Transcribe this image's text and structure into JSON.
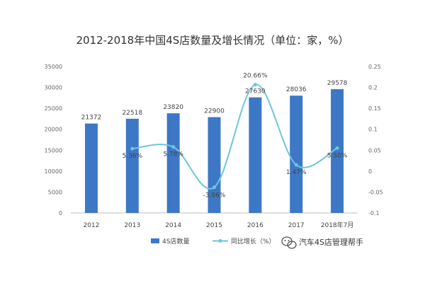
{
  "chart_data": {
    "type": "bar",
    "title": "2012-2018年中国4S店数量及增长情况（单位：家，%）",
    "categories": [
      "2012",
      "2013",
      "2014",
      "2015",
      "2016",
      "2017",
      "2018年7月"
    ],
    "series": [
      {
        "name": "4S店数量",
        "type": "bar",
        "axis": "left",
        "values": [
          21372,
          22518,
          23820,
          22900,
          27630,
          28036,
          29578
        ],
        "labels": [
          "21372",
          "22518",
          "23820",
          "22900",
          "27630",
          "28036",
          "29578"
        ],
        "color": "#3d78c7"
      },
      {
        "name": "同比增长（%）",
        "type": "line",
        "axis": "right",
        "values": [
          null,
          0.0536,
          0.0578,
          -0.0386,
          0.2066,
          0.0147,
          0.055
        ],
        "labels": [
          "",
          "5.36%",
          "5.78%",
          "-3.86%",
          "20.66%",
          "1.47%",
          "5.50%"
        ],
        "color": "#6ec6d8"
      }
    ],
    "y_left": {
      "min": 0,
      "max": 35000,
      "ticks": [
        0,
        5000,
        10000,
        15000,
        20000,
        25000,
        30000,
        35000
      ],
      "tick_labels": [
        "0",
        "5000",
        "10000",
        "15000",
        "20000",
        "25000",
        "30000",
        "35000"
      ]
    },
    "y_right": {
      "min": -0.1,
      "max": 0.25,
      "ticks": [
        -0.1,
        -0.05,
        0,
        0.05,
        0.1,
        0.15,
        0.2,
        0.25
      ],
      "tick_labels": [
        "-0.1",
        "-0.05",
        "0",
        "0.05",
        "0.1",
        "0.15",
        "0.2",
        "0.25"
      ]
    },
    "grid": false,
    "legend_position": "bottom",
    "legend": [
      "4S店数量",
      "同比增长（%）"
    ]
  },
  "watermark": {
    "text": "汽车4S店管理帮手",
    "icon": "wechat-icon"
  }
}
